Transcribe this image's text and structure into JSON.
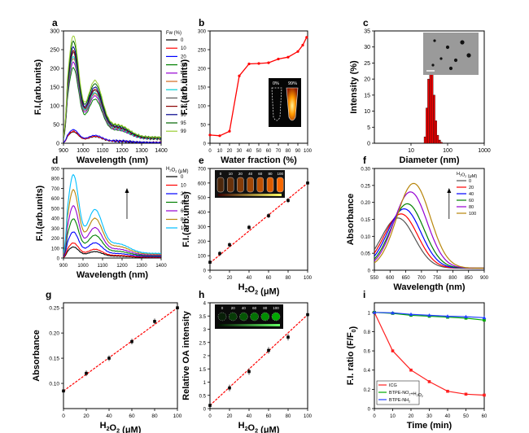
{
  "figure": {
    "background": "#ffffff"
  },
  "chart_data": [
    {
      "id": "a",
      "panel_label": "a",
      "type": "line",
      "xlabel": "Wavelength (nm)",
      "ylabel": "F.I.(arb.units)",
      "xlim": [
        900,
        1400
      ],
      "ylim": [
        0,
        300
      ],
      "xticks": [
        900,
        1000,
        1100,
        1200,
        1300,
        1400
      ],
      "yticks": [
        0,
        50,
        100,
        150,
        200,
        250,
        300
      ],
      "legend_title": "Fw (%)",
      "legend_position": "right",
      "series": [
        {
          "name": "0",
          "color": "#000000",
          "peak": 30
        },
        {
          "name": "10",
          "color": "#ff0000",
          "peak": 32
        },
        {
          "name": "20",
          "color": "#0000ff",
          "peak": 36
        },
        {
          "name": "30",
          "color": "#008000",
          "peak": 200
        },
        {
          "name": "40",
          "color": "#9400d3",
          "peak": 215
        },
        {
          "name": "50",
          "color": "#d2691e",
          "peak": 225
        },
        {
          "name": "60",
          "color": "#00ced1",
          "peak": 230
        },
        {
          "name": "70",
          "color": "#555555",
          "peak": 240
        },
        {
          "name": "80",
          "color": "#8b0000",
          "peak": 245
        },
        {
          "name": "90",
          "color": "#00008b",
          "peak": 255
        },
        {
          "name": "95",
          "color": "#006400",
          "peak": 270
        },
        {
          "name": "99",
          "color": "#9acd32",
          "peak": 285
        }
      ]
    },
    {
      "id": "b",
      "panel_label": "b",
      "type": "line",
      "xlabel": "Water fraction (%)",
      "ylabel": "F.I.(arb.units)",
      "xlim": [
        0,
        100
      ],
      "ylim": [
        0,
        300
      ],
      "xticks": [
        0,
        10,
        20,
        30,
        40,
        50,
        60,
        70,
        80,
        90,
        100
      ],
      "yticks": [
        0,
        50,
        100,
        150,
        200,
        250,
        300
      ],
      "x": [
        0,
        10,
        20,
        30,
        40,
        50,
        60,
        70,
        80,
        90,
        95,
        99
      ],
      "y": [
        22,
        20,
        32,
        180,
        212,
        213,
        215,
        225,
        230,
        245,
        262,
        283
      ],
      "color": "#ff0000",
      "inset_labels": [
        "0%",
        "99%"
      ]
    },
    {
      "id": "c",
      "panel_label": "c",
      "type": "bar",
      "xlabel": "Diameter (nm)",
      "ylabel": "Intensity (%)",
      "xscale": "log",
      "xlim": [
        1,
        1000
      ],
      "ylim": [
        0,
        35
      ],
      "xticks": [
        10,
        100,
        1000
      ],
      "yticks": [
        0,
        5,
        10,
        15,
        20,
        25,
        30,
        35
      ],
      "x": [
        24,
        27,
        30,
        34,
        38,
        43,
        48,
        54,
        61,
        68
      ],
      "values": [
        2,
        11,
        20,
        29,
        22,
        15,
        7,
        2.5,
        1,
        0.3
      ],
      "color": "#ff0000"
    },
    {
      "id": "d",
      "panel_label": "d",
      "type": "line",
      "xlabel": "Wavelength (nm)",
      "ylabel": "F.I.(arb.units)",
      "xlim": [
        900,
        1400
      ],
      "ylim": [
        0,
        900
      ],
      "xticks": [
        900,
        1000,
        1100,
        1200,
        1300,
        1400
      ],
      "yticks": [
        0,
        100,
        200,
        300,
        400,
        500,
        600,
        700,
        800,
        900
      ],
      "legend_title": "H2O2 (μM)",
      "legend_position": "right",
      "series": [
        {
          "name": "0",
          "color": "#000000",
          "peak": 110
        },
        {
          "name": "10",
          "color": "#ff0000",
          "peak": 150
        },
        {
          "name": "20",
          "color": "#0000ff",
          "peak": 260
        },
        {
          "name": "40",
          "color": "#008000",
          "peak": 390
        },
        {
          "name": "60",
          "color": "#9400d3",
          "peak": 520
        },
        {
          "name": "80",
          "color": "#b8860b",
          "peak": 680
        },
        {
          "name": "100",
          "color": "#00bfff",
          "peak": 830
        }
      ]
    },
    {
      "id": "e",
      "panel_label": "e",
      "type": "scatter",
      "xlabel": "H2O2 (μM)",
      "ylabel": "F.I.(arb.units)",
      "xlim": [
        0,
        100
      ],
      "ylim": [
        0,
        700
      ],
      "xticks": [
        0,
        20,
        40,
        60,
        80,
        100
      ],
      "yticks": [
        0,
        100,
        200,
        300,
        400,
        500,
        600,
        700
      ],
      "x": [
        0,
        10,
        20,
        40,
        60,
        80,
        100
      ],
      "y": [
        55,
        115,
        175,
        295,
        375,
        480,
        600
      ],
      "fit": [
        50,
        600
      ],
      "color": "#ff0000",
      "inset_labels": [
        "0",
        "10",
        "20",
        "40",
        "60",
        "80",
        "100"
      ]
    },
    {
      "id": "f",
      "panel_label": "f",
      "type": "line",
      "xlabel": "Wavelength (nm)",
      "ylabel": "Absorbance",
      "xlim": [
        550,
        900
      ],
      "ylim": [
        0,
        0.3
      ],
      "xticks": [
        550,
        600,
        650,
        700,
        750,
        800,
        850,
        900
      ],
      "yticks": [
        0.0,
        0.05,
        0.1,
        0.15,
        0.2,
        0.25,
        0.3
      ],
      "legend_title": "H2O2 (μM)",
      "legend_position": "right",
      "series": [
        {
          "name": "0",
          "color": "#555555",
          "peak": 0.148,
          "center": 625
        },
        {
          "name": "20",
          "color": "#ff0000",
          "peak": 0.16,
          "center": 635
        },
        {
          "name": "40",
          "color": "#0000ff",
          "peak": 0.175,
          "center": 645
        },
        {
          "name": "60",
          "color": "#008000",
          "peak": 0.19,
          "center": 655
        },
        {
          "name": "80",
          "color": "#9400d3",
          "peak": 0.225,
          "center": 665
        },
        {
          "name": "100",
          "color": "#b8860b",
          "peak": 0.25,
          "center": 675
        }
      ]
    },
    {
      "id": "g",
      "panel_label": "g",
      "type": "scatter",
      "xlabel": "H2O2 (μM)",
      "ylabel": "Absorbance",
      "xlim": [
        0,
        100
      ],
      "ylim": [
        0.05,
        0.26
      ],
      "xticks": [
        0,
        20,
        40,
        60,
        80,
        100
      ],
      "yticks": [
        0.1,
        0.15,
        0.2,
        0.25
      ],
      "x": [
        0,
        20,
        40,
        60,
        80,
        100
      ],
      "y": [
        0.085,
        0.12,
        0.15,
        0.183,
        0.223,
        0.25
      ],
      "fit": [
        0.085,
        0.25
      ],
      "color": "#ff0000"
    },
    {
      "id": "h",
      "panel_label": "h",
      "type": "scatter",
      "xlabel": "H2O2 (μM)",
      "ylabel": "Relative OA intensity",
      "xlim": [
        0,
        100
      ],
      "ylim": [
        0,
        4.0
      ],
      "xticks": [
        0,
        20,
        40,
        60,
        80,
        100
      ],
      "yticks": [
        0.0,
        0.5,
        1.0,
        1.5,
        2.0,
        2.5,
        3.0,
        3.5,
        4.0
      ],
      "x": [
        0,
        20,
        40,
        60,
        80,
        100
      ],
      "y": [
        0.12,
        0.78,
        1.4,
        2.2,
        2.7,
        3.55
      ],
      "fit": [
        0.12,
        3.55
      ],
      "color": "#ff0000",
      "inset_labels": [
        "0",
        "20",
        "40",
        "60",
        "80",
        "100"
      ]
    },
    {
      "id": "i",
      "panel_label": "i",
      "type": "line",
      "xlabel": "Time (min)",
      "ylabel": "F.I. ratio (F/F0)",
      "xlim": [
        0,
        60
      ],
      "ylim": [
        0,
        1.1
      ],
      "xticks": [
        0,
        10,
        20,
        30,
        40,
        50,
        60
      ],
      "yticks": [
        0.0,
        0.2,
        0.4,
        0.6,
        0.8,
        1.0
      ],
      "legend_position": "bottom-left",
      "series": [
        {
          "name": "ICG",
          "color": "#ff2020",
          "marker": "square",
          "x": [
            0,
            10,
            20,
            30,
            40,
            50,
            60
          ],
          "y": [
            1.0,
            0.6,
            0.4,
            0.28,
            0.18,
            0.15,
            0.14
          ]
        },
        {
          "name": "BTPE-NO2+H2O2",
          "color": "#00aa00",
          "marker": "square",
          "x": [
            0,
            10,
            20,
            30,
            40,
            50,
            60
          ],
          "y": [
            1.0,
            0.99,
            0.97,
            0.96,
            0.95,
            0.94,
            0.92
          ]
        },
        {
          "name": "BTPE-NH2",
          "color": "#2040ff",
          "marker": "triangle",
          "x": [
            0,
            10,
            20,
            30,
            40,
            50,
            60
          ],
          "y": [
            1.0,
            0.995,
            0.98,
            0.97,
            0.96,
            0.955,
            0.945
          ]
        }
      ]
    }
  ]
}
